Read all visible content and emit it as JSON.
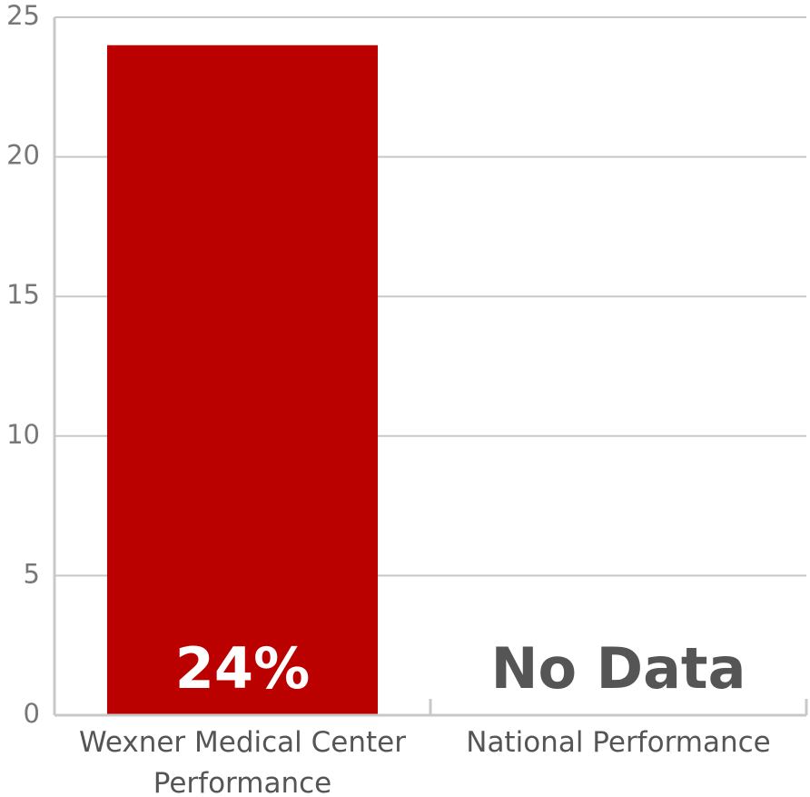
{
  "chart_data": {
    "type": "bar",
    "categories": [
      "Wexner Medical Center Performance",
      "National Performance"
    ],
    "values": [
      24,
      null
    ],
    "value_labels": [
      "24%",
      "No Data"
    ],
    "color": "#bb0000",
    "ylim": [
      0,
      25
    ],
    "yticks": [
      0,
      5,
      10,
      15,
      20,
      25
    ],
    "grid": true
  }
}
